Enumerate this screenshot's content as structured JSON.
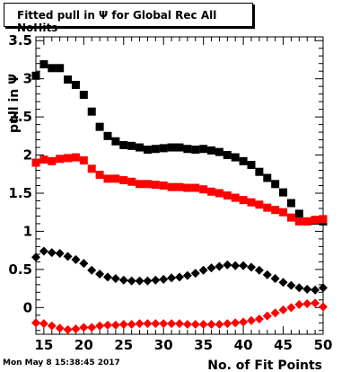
{
  "title": "Fitted pull in  Ψ  for Global Rec All NoHits",
  "footer": "Mon May  8 15:38:45 2017",
  "chart_data": {
    "type": "scatter",
    "xlabel": "No. of Fit Points",
    "ylabel": "pull in  Ψ",
    "xlim": [
      14,
      50
    ],
    "ylim": [
      -0.35,
      3.55
    ],
    "x_ticks": [
      15,
      20,
      25,
      30,
      35,
      40,
      45,
      50
    ],
    "y_ticks": [
      0,
      0.5,
      1,
      1.5,
      2,
      2.5,
      3,
      3.5
    ],
    "x_tick_labels": [
      "15",
      "20",
      "25",
      "30",
      "35",
      "40",
      "45",
      "50"
    ],
    "y_tick_labels": [
      "0",
      "0.5",
      "1",
      "1.5",
      "2",
      "2.5",
      "3",
      "3.5"
    ],
    "grid": false,
    "x": [
      14,
      15,
      16,
      17,
      18,
      19,
      20,
      21,
      22,
      23,
      24,
      25,
      26,
      27,
      28,
      29,
      30,
      31,
      32,
      33,
      34,
      35,
      36,
      37,
      38,
      39,
      40,
      41,
      42,
      43,
      44,
      45,
      46,
      47,
      48,
      49,
      50
    ],
    "series": [
      {
        "color": "#000000",
        "marker": "square",
        "values": [
          3.04,
          3.19,
          3.14,
          3.14,
          2.99,
          2.92,
          2.79,
          2.57,
          2.37,
          2.25,
          2.18,
          2.13,
          2.12,
          2.1,
          2.07,
          2.08,
          2.09,
          2.1,
          2.1,
          2.08,
          2.07,
          2.08,
          2.06,
          2.04,
          2.0,
          1.97,
          1.92,
          1.87,
          1.78,
          1.7,
          1.62,
          1.51,
          1.37,
          1.23,
          1.13,
          1.14,
          1.13
        ]
      },
      {
        "color": "#ff0000",
        "marker": "square",
        "values": [
          1.9,
          1.94,
          1.92,
          1.95,
          1.96,
          1.97,
          1.93,
          1.82,
          1.74,
          1.69,
          1.69,
          1.67,
          1.65,
          1.62,
          1.62,
          1.61,
          1.6,
          1.58,
          1.58,
          1.57,
          1.57,
          1.55,
          1.52,
          1.5,
          1.47,
          1.44,
          1.41,
          1.38,
          1.35,
          1.31,
          1.28,
          1.25,
          1.18,
          1.13,
          1.13,
          1.15,
          1.16
        ]
      },
      {
        "color": "#000000",
        "marker": "diamond",
        "values": [
          0.66,
          0.74,
          0.72,
          0.71,
          0.67,
          0.63,
          0.58,
          0.49,
          0.44,
          0.4,
          0.38,
          0.36,
          0.35,
          0.35,
          0.35,
          0.36,
          0.37,
          0.39,
          0.4,
          0.42,
          0.45,
          0.49,
          0.52,
          0.54,
          0.56,
          0.55,
          0.55,
          0.53,
          0.49,
          0.43,
          0.38,
          0.33,
          0.29,
          0.26,
          0.24,
          0.23,
          0.26
        ]
      },
      {
        "color": "#ff0000",
        "marker": "diamond",
        "values": [
          -0.2,
          -0.21,
          -0.24,
          -0.27,
          -0.29,
          -0.28,
          -0.26,
          -0.26,
          -0.24,
          -0.23,
          -0.23,
          -0.22,
          -0.22,
          -0.21,
          -0.21,
          -0.21,
          -0.21,
          -0.21,
          -0.21,
          -0.22,
          -0.22,
          -0.22,
          -0.22,
          -0.22,
          -0.21,
          -0.2,
          -0.19,
          -0.17,
          -0.15,
          -0.11,
          -0.07,
          -0.03,
          0.0,
          0.04,
          0.05,
          0.06,
          0.01
        ]
      }
    ]
  }
}
